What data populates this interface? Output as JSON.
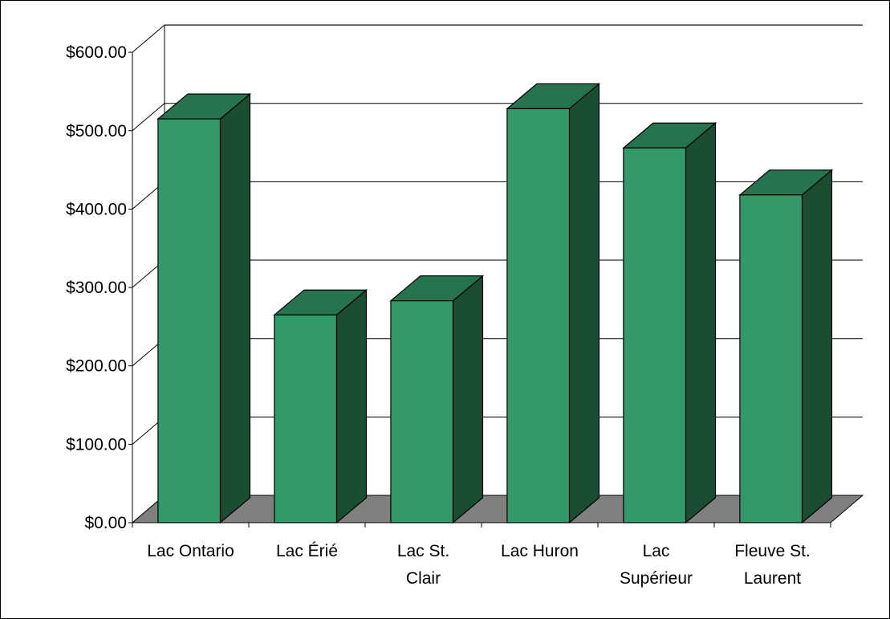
{
  "chart_data": {
    "type": "bar",
    "style": "3d-column",
    "title": "",
    "xlabel": "",
    "ylabel": "",
    "categories": [
      [
        "Lac Ontario"
      ],
      [
        "Lac Érié"
      ],
      [
        "Lac St.",
        "Clair"
      ],
      [
        "Lac Huron"
      ],
      [
        "Lac",
        "Supérieur"
      ],
      [
        "Fleuve St.",
        "Laurent"
      ]
    ],
    "values": [
      515,
      265,
      283,
      528,
      478,
      418
    ],
    "ylim": [
      0,
      600
    ],
    "yticks": [
      "$0.00",
      "$100.00",
      "$200.00",
      "$300.00",
      "$400.00",
      "$500.00",
      "$600.00"
    ],
    "grid": true,
    "legend": "none",
    "colors": {
      "bar_front": "#339966",
      "bar_top": "#267350",
      "bar_side": "#1b4d33",
      "floor": "#808080",
      "stroke": "#000000"
    }
  }
}
